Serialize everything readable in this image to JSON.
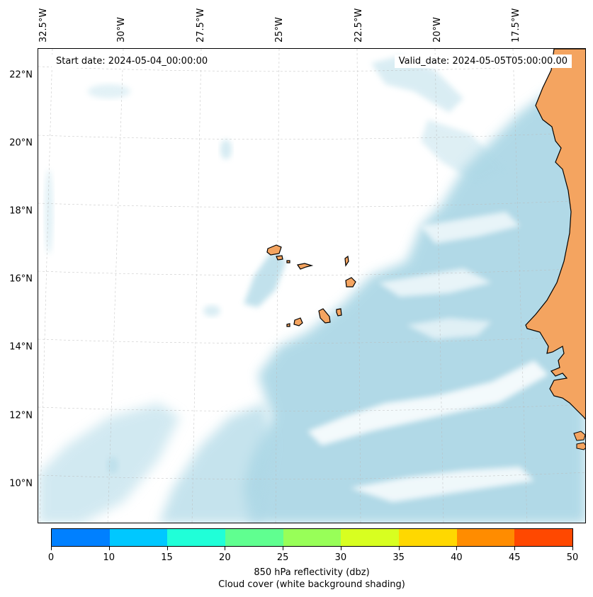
{
  "header": {
    "start_date": "Start date: 2024-05-04_00:00:00",
    "valid_date": "Valid_date: 2024-05-05T05:00:00.00"
  },
  "map": {
    "projection": "lambert-conformal",
    "lat_labels": [
      "22°N",
      "20°N",
      "18°N",
      "16°N",
      "14°N",
      "12°N",
      "10°N"
    ],
    "lon_labels": [
      "32.5°W",
      "30°W",
      "27.5°W",
      "25°W",
      "22.5°W",
      "20°W",
      "17.5°W"
    ],
    "land_color": "#f4a460",
    "cloud_color": "#add8e6",
    "gridlines": true,
    "features": [
      "cape-verde-islands",
      "west-africa-coast"
    ]
  },
  "colorbar": {
    "ticks": [
      "0",
      "10",
      "15",
      "20",
      "25",
      "30",
      "35",
      "40",
      "45",
      "50"
    ],
    "colors": [
      "#0080ff",
      "#00c8ff",
      "#20ffd8",
      "#60ff90",
      "#98ff58",
      "#d8ff20",
      "#ffd800",
      "#ff8c00",
      "#ff4800"
    ],
    "label": "850 hPa reflectivity (dbz)",
    "sublabel": "Cloud cover (white background shading)"
  }
}
